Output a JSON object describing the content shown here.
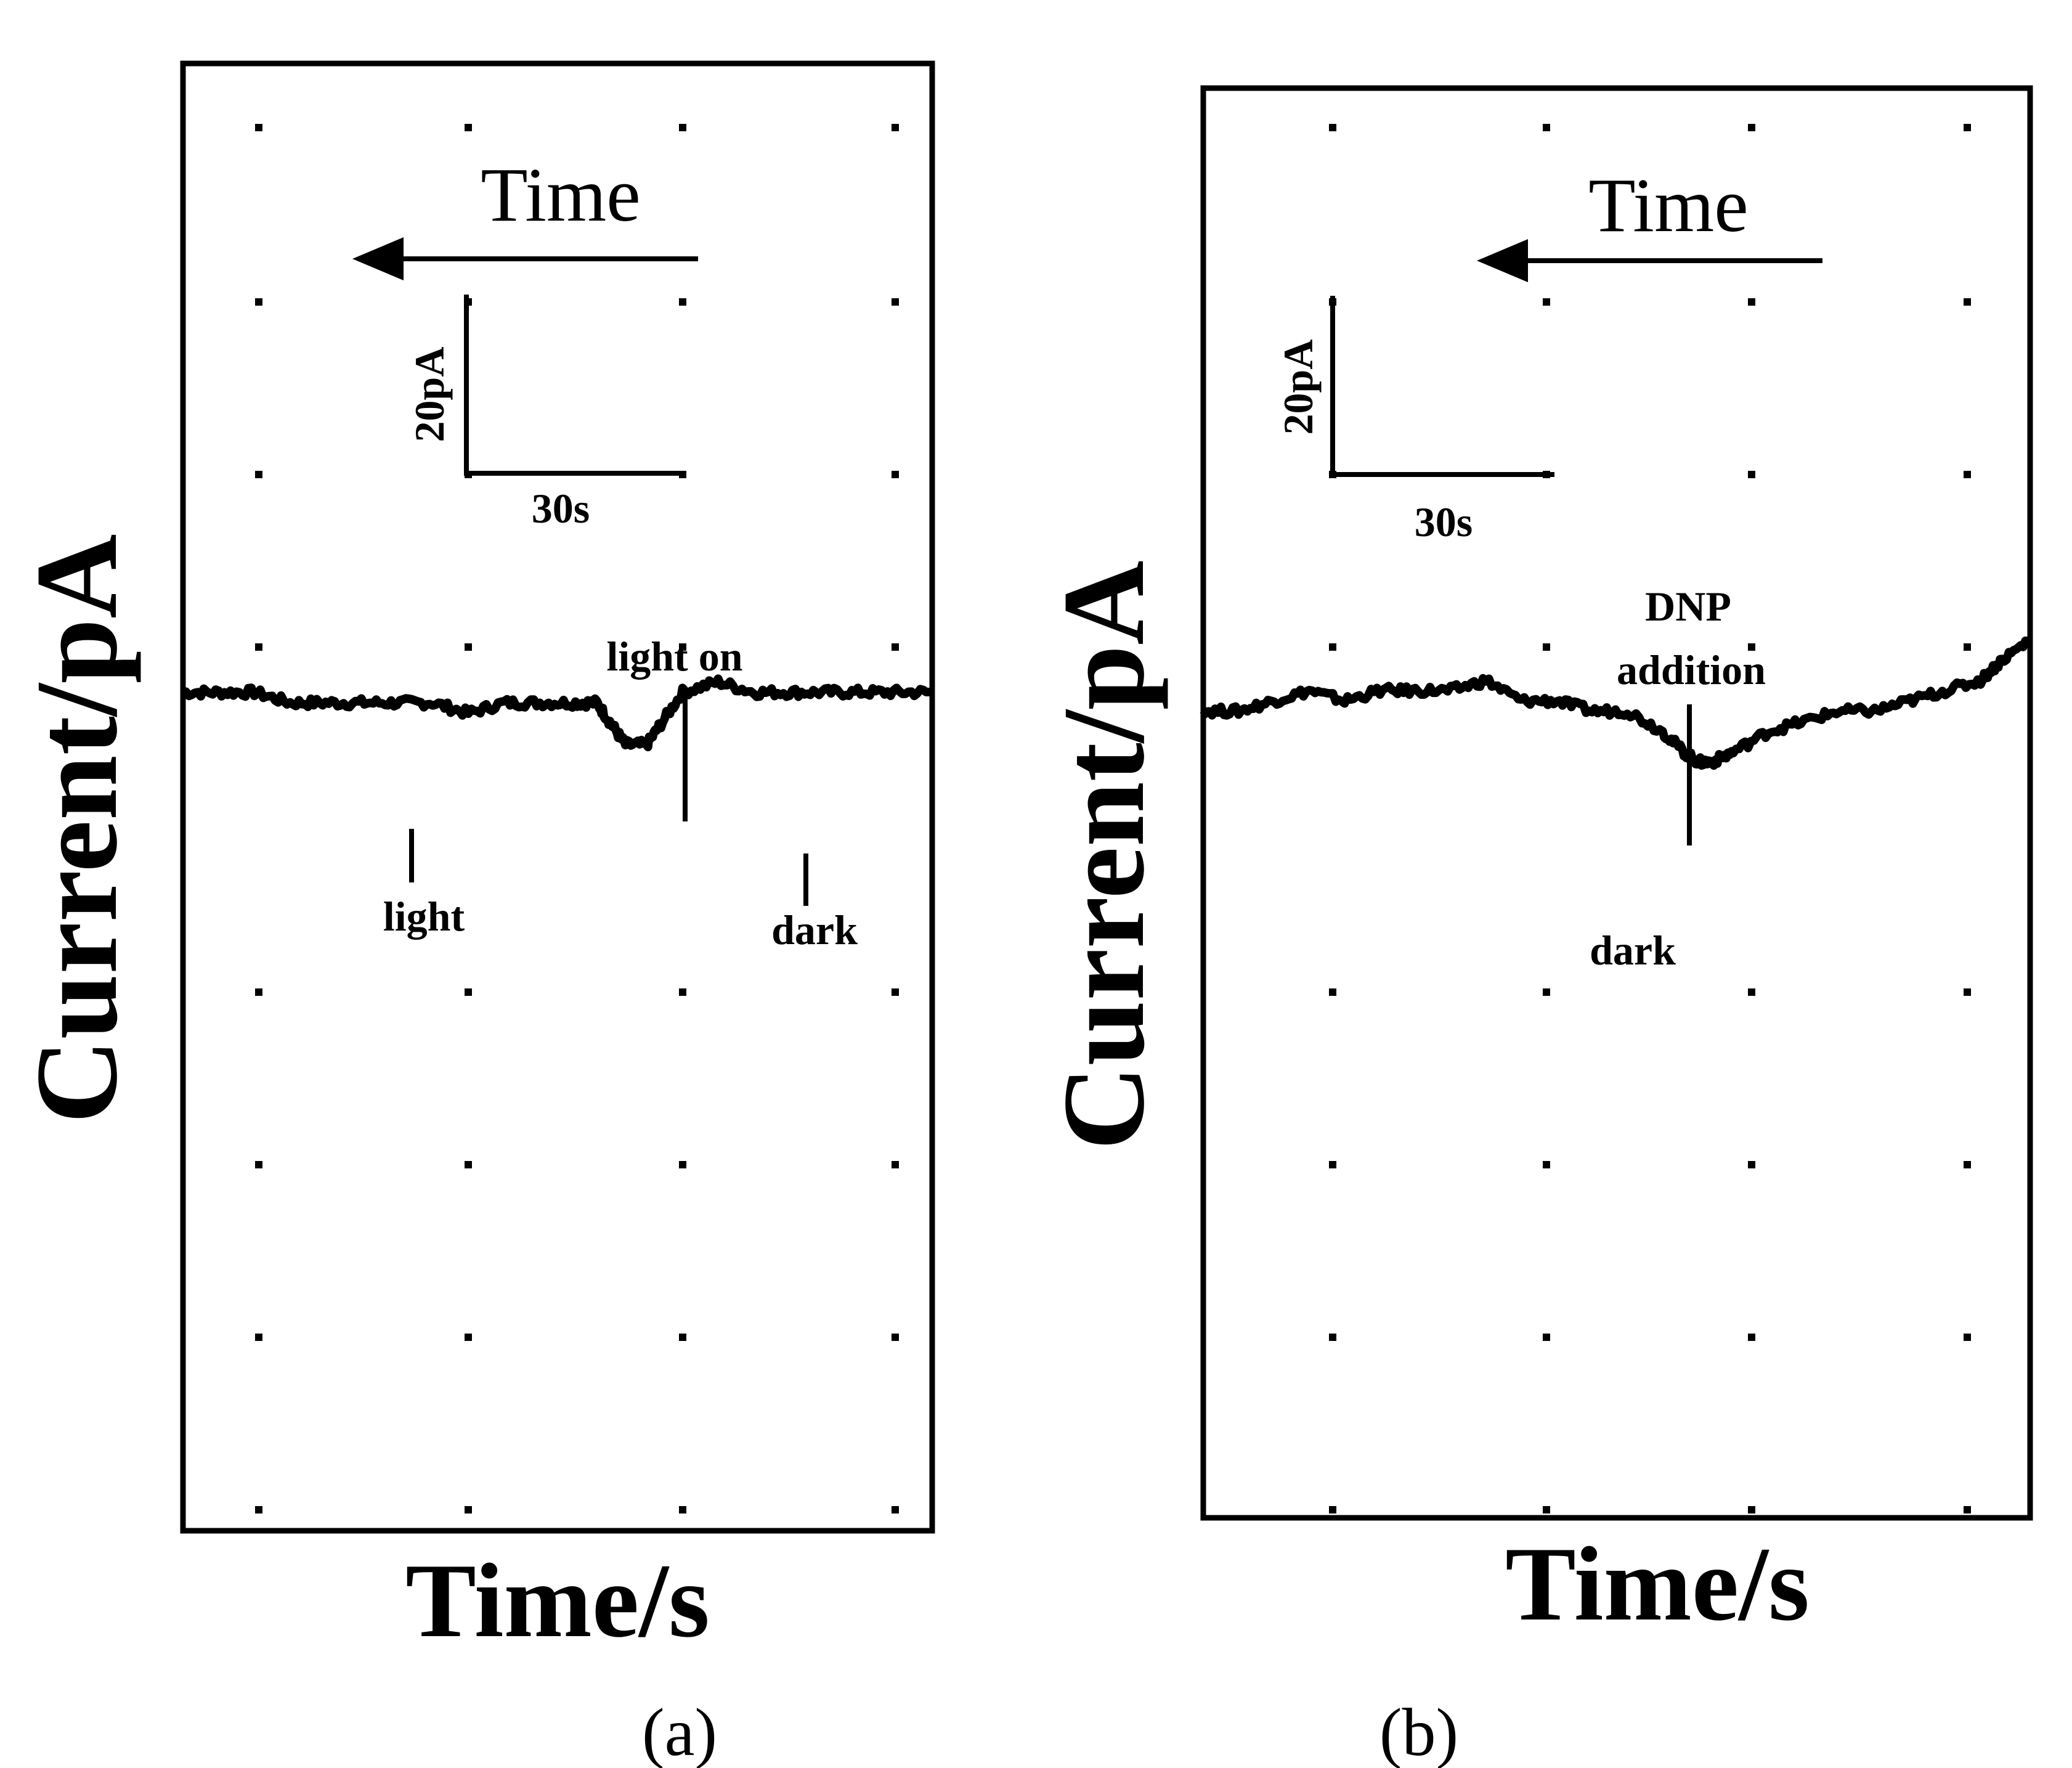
{
  "chart_data": [
    {
      "type": "line",
      "panel_label": "(a)",
      "xlabel": "Time/s",
      "ylabel": "Current/pA",
      "grid": "dotted",
      "direction_label": "Time",
      "scale_bar": {
        "y_label": "20pA",
        "x_label": "30s",
        "y_value": 20,
        "x_value": 30
      },
      "time_flow": "right-to-left",
      "xlim": [
        0,
        105
      ],
      "ylim": [
        -80,
        60
      ],
      "series": [
        {
          "x": [
            0,
            5,
            10,
            15,
            20,
            25,
            30,
            35,
            40,
            45,
            50,
            55,
            58,
            60,
            62,
            65,
            67,
            70,
            75,
            80,
            85,
            90,
            95,
            100,
            105
          ],
          "y": [
            0,
            0,
            0,
            -1,
            -1,
            -1,
            -1,
            -1,
            -2,
            -1,
            -1,
            -1,
            -1,
            -3,
            -5,
            -5,
            -3,
            0,
            1,
            0,
            0,
            0,
            0,
            0,
            0
          ]
        }
      ],
      "annotations": [
        {
          "text": "light on",
          "x": 67
        },
        {
          "text": "light",
          "x": 30
        },
        {
          "text": "dark",
          "x": 87
        }
      ]
    },
    {
      "type": "line",
      "panel_label": "(b)",
      "xlabel": "Time/s",
      "ylabel": "Current/pA",
      "grid": "dotted",
      "direction_label": "Time",
      "scale_bar": {
        "y_label": "20pA",
        "x_label": "30s",
        "y_value": 20,
        "x_value": 30
      },
      "time_flow": "right-to-left",
      "xlim": [
        0,
        117
      ],
      "ylim": [
        -80,
        60
      ],
      "series": [
        {
          "x": [
            0,
            5,
            10,
            15,
            20,
            25,
            30,
            35,
            40,
            45,
            50,
            55,
            60,
            65,
            68,
            70,
            72,
            75,
            80,
            85,
            90,
            95,
            100,
            105,
            110,
            113,
            117
          ],
          "y": [
            -1,
            -1,
            0,
            1,
            0,
            1,
            1,
            1,
            2,
            0,
            0,
            -1,
            -1,
            -3,
            -5,
            -6,
            -6,
            -5,
            -3,
            -2,
            -1,
            -1,
            0,
            1,
            2,
            4,
            6
          ]
        }
      ],
      "annotations": [
        {
          "text": "DNP",
          "x": 70
        },
        {
          "text": "addition",
          "x": 70
        },
        {
          "text": "dark",
          "x": 62
        }
      ]
    }
  ]
}
